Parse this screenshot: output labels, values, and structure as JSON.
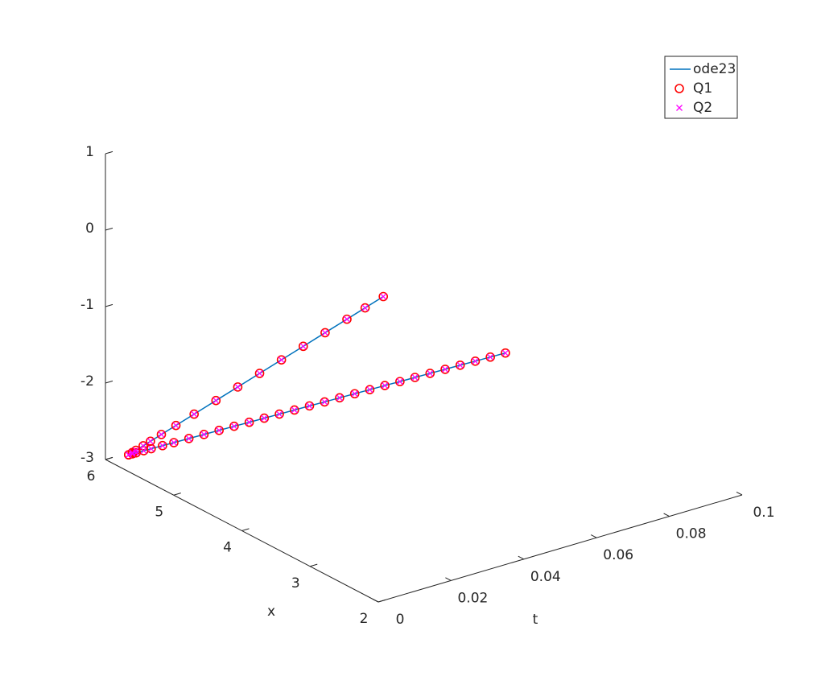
{
  "chart_data": {
    "type": "line3d",
    "xlabel": "t",
    "ylabel": "x",
    "xlim": [
      0,
      0.1
    ],
    "xticks": [
      0,
      0.02,
      0.04,
      0.06,
      0.08,
      0.1
    ],
    "ylim": [
      2,
      6
    ],
    "yticks": [
      2,
      3,
      4,
      5,
      6
    ],
    "zlim": [
      -3,
      1
    ],
    "zticks": [
      -3,
      -2,
      -1,
      0,
      1
    ],
    "legend": "northeast",
    "series": [
      {
        "name": "ode23",
        "color": "#0072bd",
        "marker": "none",
        "curves": [
          {
            "t": [
              0,
              0.001,
              0.002,
              0.004,
              0.006,
              0.009,
              0.013,
              0.018,
              0.024,
              0.03,
              0.036,
              0.042,
              0.048,
              0.054,
              0.06,
              0.065,
              0.07
            ],
            "x": [
              5.66,
              5.66,
              5.66,
              5.66,
              5.66,
              5.66,
              5.66,
              5.66,
              5.66,
              5.66,
              5.66,
              5.66,
              5.66,
              5.66,
              5.66,
              5.66,
              5.66
            ],
            "z": [
              -2.78,
              -2.764,
              -2.749,
              -2.718,
              -2.687,
              -2.64,
              -2.578,
              -2.5,
              -2.406,
              -2.313,
              -2.219,
              -2.126,
              -2.033,
              -1.939,
              -1.846,
              -1.768,
              -1.69
            ]
          },
          {
            "t": [
              0,
              0.001,
              0.002,
              0.004,
              0.006,
              0.009,
              0.012,
              0.016,
              0.02,
              0.024,
              0.028,
              0.032,
              0.036,
              0.04,
              0.044,
              0.048,
              0.052,
              0.056,
              0.06,
              0.064,
              0.068,
              0.072,
              0.076,
              0.08,
              0.084,
              0.088,
              0.092,
              0.096,
              0.1
            ],
            "x": [
              5.66,
              5.658,
              5.656,
              5.652,
              5.649,
              5.643,
              5.637,
              5.63,
              5.622,
              5.614,
              5.607,
              5.599,
              5.592,
              5.584,
              5.576,
              5.569,
              5.561,
              5.554,
              5.546,
              5.538,
              5.531,
              5.523,
              5.516,
              5.508,
              5.5,
              5.493,
              5.485,
              5.478,
              5.47
            ],
            "z": [
              -2.78,
              -2.78,
              -2.78,
              -2.779,
              -2.779,
              -2.778,
              -2.778,
              -2.777,
              -2.776,
              -2.775,
              -2.774,
              -2.774,
              -2.773,
              -2.772,
              -2.771,
              -2.77,
              -2.77,
              -2.769,
              -2.768,
              -2.767,
              -2.766,
              -2.766,
              -2.765,
              -2.764,
              -2.763,
              -2.762,
              -2.762,
              -2.761,
              -2.76
            ]
          }
        ]
      },
      {
        "name": "Q1",
        "color": "#ff0000",
        "marker": "o",
        "curves": [
          {
            "t": [
              0,
              0.001,
              0.002,
              0.004,
              0.006,
              0.009,
              0.013,
              0.018,
              0.024,
              0.03,
              0.036,
              0.042,
              0.048,
              0.054,
              0.06,
              0.065,
              0.07
            ],
            "x": [
              5.66,
              5.66,
              5.66,
              5.66,
              5.66,
              5.66,
              5.66,
              5.66,
              5.66,
              5.66,
              5.66,
              5.66,
              5.66,
              5.66,
              5.66,
              5.66,
              5.66
            ],
            "z": [
              -2.78,
              -2.764,
              -2.749,
              -2.718,
              -2.687,
              -2.64,
              -2.578,
              -2.5,
              -2.406,
              -2.313,
              -2.219,
              -2.126,
              -2.033,
              -1.939,
              -1.846,
              -1.768,
              -1.69
            ]
          },
          {
            "t": [
              0,
              0.001,
              0.002,
              0.004,
              0.006,
              0.009,
              0.012,
              0.016,
              0.02,
              0.024,
              0.028,
              0.032,
              0.036,
              0.04,
              0.044,
              0.048,
              0.052,
              0.056,
              0.06,
              0.064,
              0.068,
              0.072,
              0.076,
              0.08,
              0.084,
              0.088,
              0.092,
              0.096,
              0.1
            ],
            "x": [
              5.66,
              5.658,
              5.656,
              5.652,
              5.649,
              5.643,
              5.637,
              5.63,
              5.622,
              5.614,
              5.607,
              5.599,
              5.592,
              5.584,
              5.576,
              5.569,
              5.561,
              5.554,
              5.546,
              5.538,
              5.531,
              5.523,
              5.516,
              5.508,
              5.5,
              5.493,
              5.485,
              5.478,
              5.47
            ],
            "z": [
              -2.78,
              -2.78,
              -2.78,
              -2.779,
              -2.779,
              -2.778,
              -2.778,
              -2.777,
              -2.776,
              -2.775,
              -2.774,
              -2.774,
              -2.773,
              -2.772,
              -2.771,
              -2.77,
              -2.77,
              -2.769,
              -2.768,
              -2.767,
              -2.766,
              -2.766,
              -2.765,
              -2.764,
              -2.763,
              -2.762,
              -2.762,
              -2.761,
              -2.76
            ]
          }
        ]
      },
      {
        "name": "Q2",
        "color": "#ff00ff",
        "marker": "x",
        "curves": [
          {
            "t": [
              0,
              0.001,
              0.002,
              0.004,
              0.006,
              0.009,
              0.013,
              0.018,
              0.024,
              0.03,
              0.036,
              0.042,
              0.048,
              0.054,
              0.06,
              0.065,
              0.07
            ],
            "x": [
              5.66,
              5.66,
              5.66,
              5.66,
              5.66,
              5.66,
              5.66,
              5.66,
              5.66,
              5.66,
              5.66,
              5.66,
              5.66,
              5.66,
              5.66,
              5.66,
              5.66
            ],
            "z": [
              -2.78,
              -2.764,
              -2.749,
              -2.718,
              -2.687,
              -2.64,
              -2.578,
              -2.5,
              -2.406,
              -2.313,
              -2.219,
              -2.126,
              -2.033,
              -1.939,
              -1.846,
              -1.768,
              -1.69
            ]
          },
          {
            "t": [
              0,
              0.001,
              0.002,
              0.004,
              0.006,
              0.009,
              0.012,
              0.016,
              0.02,
              0.024,
              0.028,
              0.032,
              0.036,
              0.04,
              0.044,
              0.048,
              0.052,
              0.056,
              0.06,
              0.064,
              0.068,
              0.072,
              0.076,
              0.08,
              0.084,
              0.088,
              0.092,
              0.096,
              0.1
            ],
            "x": [
              5.66,
              5.658,
              5.656,
              5.652,
              5.649,
              5.643,
              5.637,
              5.63,
              5.622,
              5.614,
              5.607,
              5.599,
              5.592,
              5.584,
              5.576,
              5.569,
              5.561,
              5.554,
              5.546,
              5.538,
              5.531,
              5.523,
              5.516,
              5.508,
              5.5,
              5.493,
              5.485,
              5.478,
              5.47
            ],
            "z": [
              -2.78,
              -2.78,
              -2.78,
              -2.779,
              -2.779,
              -2.778,
              -2.778,
              -2.777,
              -2.776,
              -2.775,
              -2.774,
              -2.774,
              -2.773,
              -2.772,
              -2.771,
              -2.77,
              -2.77,
              -2.769,
              -2.768,
              -2.767,
              -2.766,
              -2.766,
              -2.765,
              -2.764,
              -2.763,
              -2.762,
              -2.762,
              -2.761,
              -2.76
            ]
          }
        ]
      }
    ]
  }
}
